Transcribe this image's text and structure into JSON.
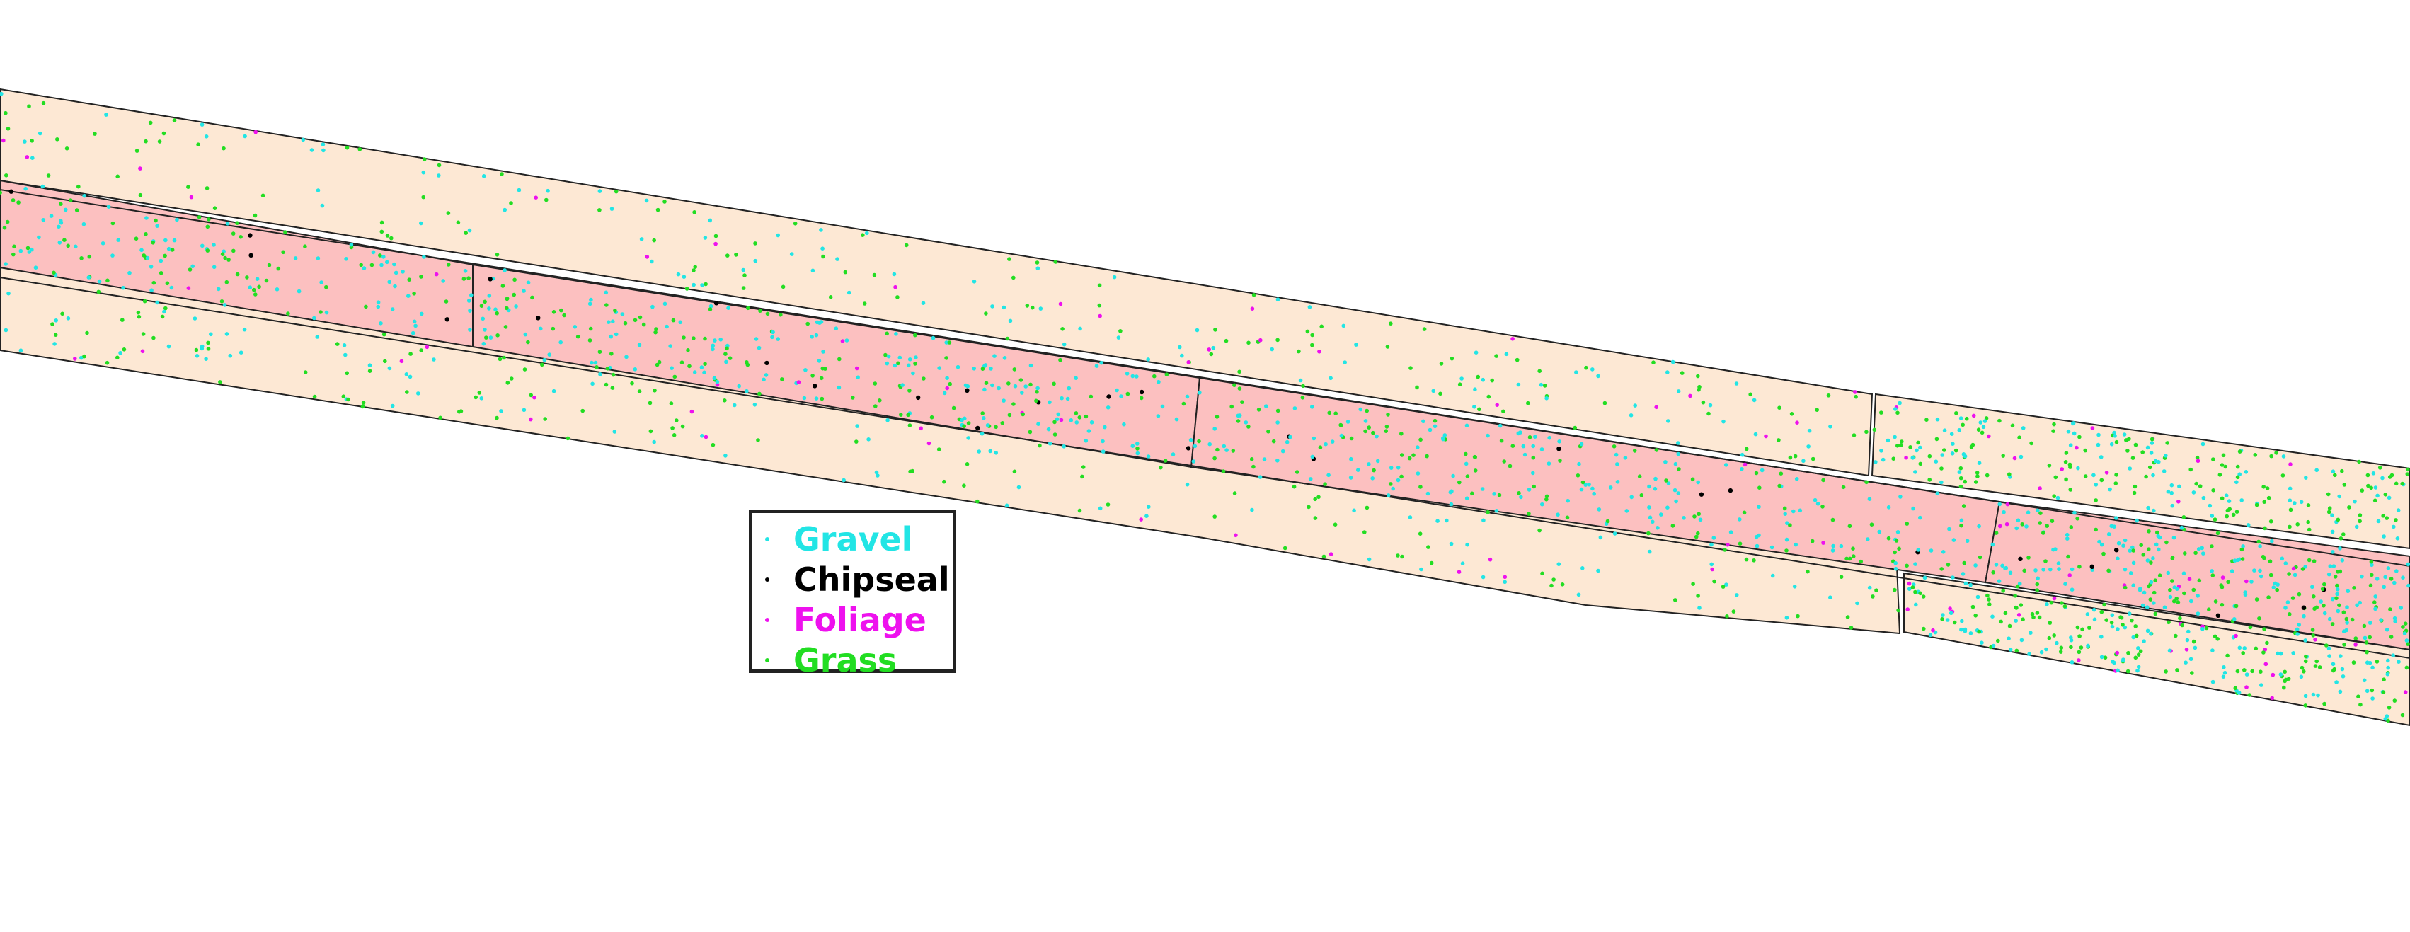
{
  "legend": {
    "items": [
      {
        "label": "Gravel",
        "color": "#22e5e5",
        "icon": "dot-icon"
      },
      {
        "label": "Chipseal",
        "color": "#000000",
        "icon": "dot-icon"
      },
      {
        "label": "Foliage",
        "color": "#ee11ee",
        "icon": "dot-icon"
      },
      {
        "label": "Grass",
        "color": "#22dd22",
        "icon": "dot-icon"
      }
    ]
  },
  "map_style": {
    "background": "#ffffff",
    "shoulder_fill": "#fde8d4",
    "road_fill": "#fcc0c0",
    "outline": "#222222"
  }
}
